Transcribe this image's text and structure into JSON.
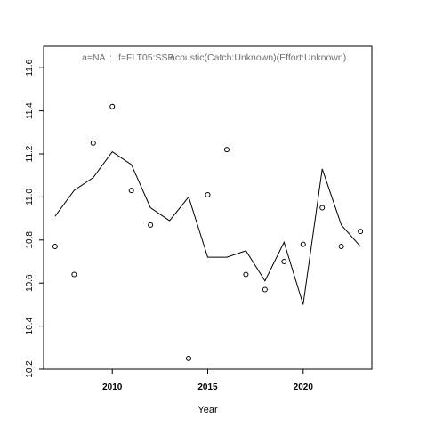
{
  "chart_data": {
    "type": "scatter",
    "title_parts": [
      "a=NA",
      ":",
      "f=FLT05:SSB",
      "acoustic(Catch:Unknown)(Effort:Unknown)"
    ],
    "xlabel": "Year",
    "ylabel": "",
    "xlim": [
      2006.4,
      2023.6
    ],
    "ylim": [
      10.2,
      11.7
    ],
    "x_ticks": [
      2010,
      2015,
      2020
    ],
    "x_tick_labels": [
      "2010",
      "2015",
      "2020"
    ],
    "y_ticks": [
      10.2,
      10.4,
      10.6,
      10.8,
      11.0,
      11.2,
      11.4,
      11.6
    ],
    "y_tick_labels": [
      "10.2",
      "10.4",
      "10.6",
      "10.8",
      "11.0",
      "11.2",
      "11.4",
      "11.6"
    ],
    "grid": false,
    "legend": "none",
    "series": [
      {
        "kind": "points",
        "x": [
          2007,
          2008,
          2009,
          2010,
          2011,
          2012,
          2014,
          2015,
          2016,
          2017,
          2018,
          2019,
          2020,
          2021,
          2022,
          2023
        ],
        "y": [
          10.77,
          10.64,
          11.25,
          11.42,
          11.03,
          10.87,
          10.25,
          11.01,
          11.22,
          10.64,
          10.57,
          10.7,
          10.78,
          10.95,
          10.77,
          10.84
        ]
      },
      {
        "kind": "line",
        "x": [
          2007,
          2008,
          2009,
          2010,
          2011,
          2012,
          2013,
          2014,
          2015,
          2016,
          2017,
          2018,
          2019,
          2020,
          2021,
          2022,
          2023
        ],
        "y": [
          10.91,
          11.03,
          11.09,
          11.21,
          11.15,
          10.95,
          10.89,
          11.0,
          10.72,
          10.72,
          10.75,
          10.61,
          10.79,
          10.5,
          11.13,
          10.87,
          10.77
        ]
      }
    ]
  }
}
